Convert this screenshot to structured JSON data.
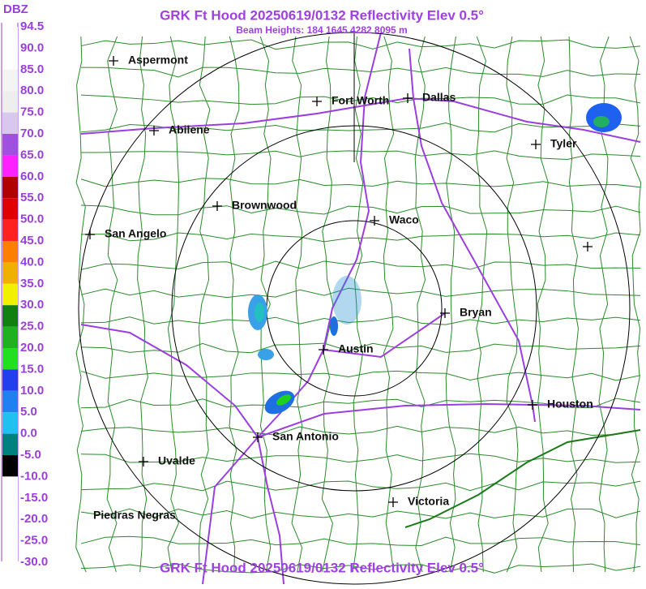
{
  "header": {
    "title": "GRK Ft Hood 20250619/0132 Reflectivity Elev 0.5°",
    "subtitle": "Beam Heights: 184 1645 4282 8095 m"
  },
  "legend": {
    "unit": "DBZ",
    "labels": [
      "94.5",
      "90.0",
      "85.0",
      "80.0",
      "75.0",
      "70.0",
      "65.0",
      "60.0",
      "55.0",
      "50.0",
      "45.0",
      "40.0",
      "35.0",
      "30.0",
      "25.0",
      "20.0",
      "15.0",
      "10.0",
      "5.0",
      "0.0",
      "-5.0",
      "-10.0",
      "-15.0",
      "-20.0",
      "-25.0",
      "-30.0"
    ]
  },
  "cities": [
    "Aspermont",
    "Abilene",
    "Fort Worth",
    "Dallas",
    "Tyler",
    "Brownwood",
    "Waco",
    "San Angelo",
    "Bryan",
    "Austin",
    "Houston",
    "San Antonio",
    "Uvalde",
    "Victoria",
    "Piedras Negras"
  ],
  "footer": {
    "title": "GRK Ft Hood 20250619/0132 Reflectivity Elev 0.5°"
  }
}
